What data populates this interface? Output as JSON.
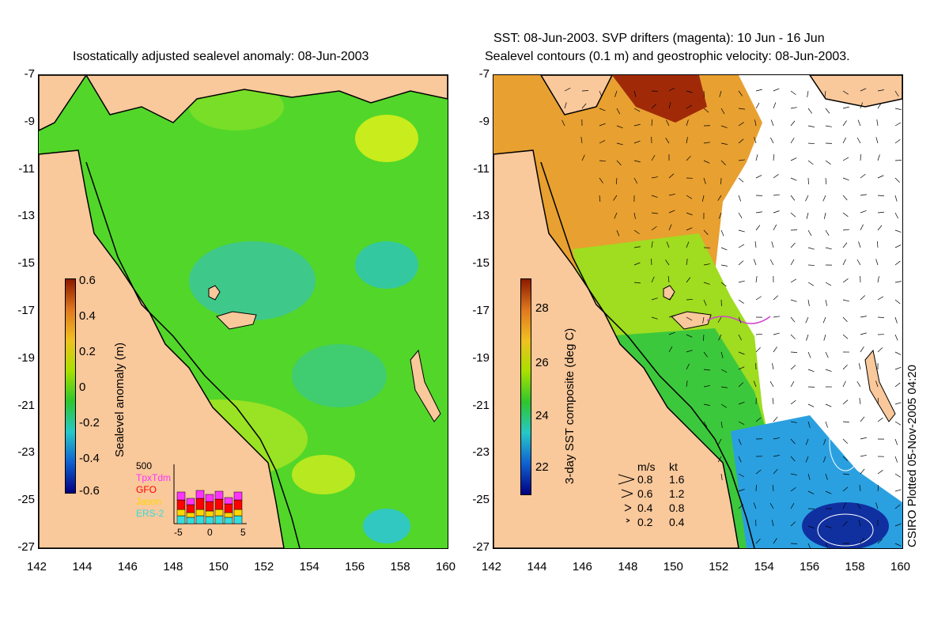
{
  "left_panel": {
    "title": "Isostatically adjusted sealevel anomaly: 08-Jun-2003",
    "colorbar_label": "Sealevel anomaly (m)",
    "colorbar_ticks": [
      "0.6",
      "0.4",
      "0.2",
      "0",
      "-0.2",
      "-0.4",
      "-0.6"
    ],
    "inset": {
      "y_label": "500",
      "series": [
        "TpxTdm",
        "GFO",
        "Jason",
        "ERS-2"
      ],
      "series_colors": [
        "#ff33ff",
        "#ff0000",
        "#ffd700",
        "#33dddd"
      ],
      "x_ticks": [
        "-5",
        "0",
        "5"
      ]
    }
  },
  "right_panel": {
    "title_line1": "SST: 08-Jun-2003. SVP drifters (magenta): 10 Jun - 16 Jun",
    "title_line2": "Sealevel contours (0.1 m) and geostrophic velocity: 08-Jun-2003.",
    "colorbar_label": "3-day SST composite (deg C)",
    "colorbar_ticks": [
      "28",
      "26",
      "24",
      "22"
    ],
    "velocity_legend": {
      "header_ms": "m/s",
      "header_kt": "kt",
      "rows": [
        {
          "ms": "0.8",
          "kt": "1.6"
        },
        {
          "ms": "0.6",
          "kt": "1.2"
        },
        {
          "ms": "0.4",
          "kt": "0.8"
        },
        {
          "ms": "0.2",
          "kt": "0.4"
        }
      ]
    },
    "credit": "CSIRO Plotted 05-Nov-2005 04:20"
  },
  "axes": {
    "y_ticks": [
      "-7",
      "-9",
      "-11",
      "-13",
      "-15",
      "-17",
      "-19",
      "-21",
      "-23",
      "-25",
      "-27"
    ],
    "x_ticks": [
      "142",
      "144",
      "146",
      "148",
      "150",
      "152",
      "154",
      "156",
      "158",
      "160"
    ]
  },
  "colors": {
    "land": "#f9c89b",
    "sla_ramp": [
      "#8b1a00",
      "#e0781f",
      "#f0c020",
      "#a8e000",
      "#2ec62e",
      "#26c8c8",
      "#1060d0",
      "#000080"
    ],
    "sst_ramp": [
      "#8b1a00",
      "#e0781f",
      "#f0c020",
      "#a8e000",
      "#2ec62e",
      "#26c8c8",
      "#1060d0",
      "#000080"
    ]
  }
}
